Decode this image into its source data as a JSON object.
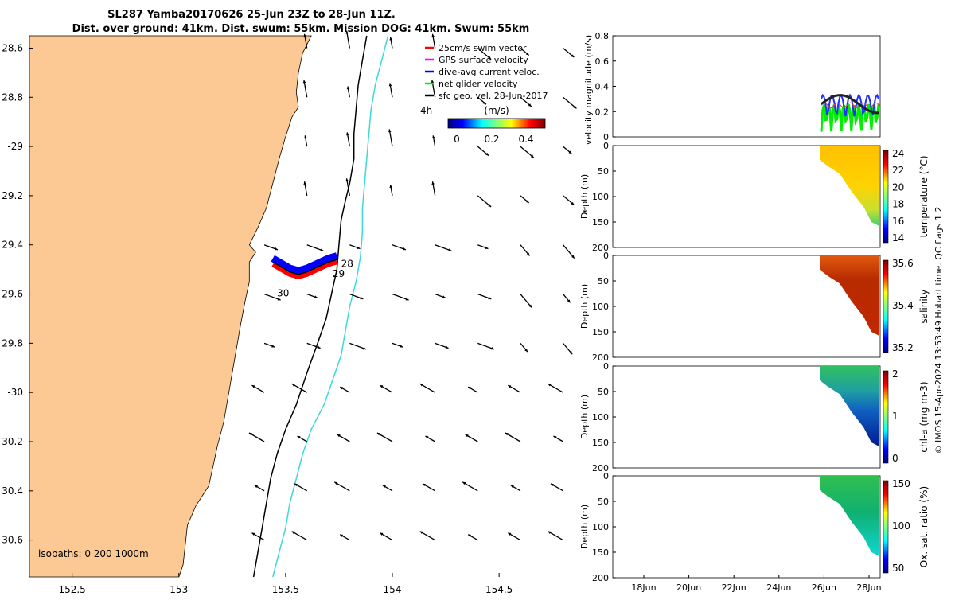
{
  "title_line1": "SL287 Yamba20170626 25-Jun 23Z to 28-Jun 11Z.",
  "title_line2": "Dist. over ground: 41km. Dist. swum: 55km. Mission DOG: 41km. Swum: 55km",
  "colors": {
    "land": "#fcc994",
    "shelf_200": "#000000",
    "isobath_1000": "#3ed8d8",
    "swim": "#ff0000",
    "gps": "#ff00ff",
    "dive": "#0000ff",
    "net": "#00ee00",
    "sfc": "#000000"
  },
  "chart_data": [
    {
      "type": "map",
      "xlabel": "",
      "ylabel": "",
      "xlim": [
        152.3,
        154.85
      ],
      "ylim": [
        -30.75,
        -28.55
      ],
      "x_ticks": [
        152.5,
        153,
        153.5,
        154,
        154.5
      ],
      "x_tick_labels": [
        "152.5",
        "153",
        "153.5",
        "154",
        "154.5"
      ],
      "y_ticks": [
        -28.6,
        -28.8,
        -29,
        -29.2,
        -29.4,
        -29.6,
        -29.8,
        -30,
        -30.2,
        -30.4,
        -30.6
      ],
      "y_tick_labels": [
        "28.6",
        "28.8",
        "-29",
        "29.2",
        "29.4",
        "29.6",
        "29.8",
        "-30",
        "30.2",
        "30.4",
        "30.6"
      ],
      "legend": {
        "placement": "top-right",
        "entries": [
          {
            "label": "25cm/s swim vector",
            "color": "#ff0000"
          },
          {
            "label": "GPS surface velocity",
            "color": "#ff00ff"
          },
          {
            "label": "dive-avg current veloc.",
            "color": "#0000ff"
          },
          {
            "label": "net glider velocity",
            "color": "#00ee00"
          },
          {
            "label": "sfc geo. vel. 28-Jun-2017",
            "color": "#000000"
          }
        ]
      },
      "colorbar": {
        "label": "(m/s)",
        "ticks": [
          "0",
          "0.2",
          "0.4"
        ],
        "range": [
          -0.05,
          0.5
        ],
        "side_label": "4h"
      },
      "isobath_label": "isobaths: 0   200  1000m",
      "day_labels": [
        {
          "text": "28",
          "lon": 153.76,
          "lat": -29.49
        },
        {
          "text": "29",
          "lon": 153.72,
          "lat": -29.53
        },
        {
          "text": "30",
          "lon": 153.46,
          "lat": -29.61
        }
      ],
      "glider_track": [
        [
          153.44,
          -29.47
        ],
        [
          153.48,
          -29.49
        ],
        [
          153.52,
          -29.51
        ],
        [
          153.56,
          -29.52
        ],
        [
          153.6,
          -29.51
        ],
        [
          153.65,
          -29.49
        ],
        [
          153.7,
          -29.47
        ],
        [
          153.74,
          -29.46
        ]
      ],
      "coastline": [
        [
          153.62,
          -28.55
        ],
        [
          153.58,
          -28.62
        ],
        [
          153.56,
          -28.7
        ],
        [
          153.55,
          -28.78
        ],
        [
          153.56,
          -28.84
        ],
        [
          153.53,
          -28.88
        ],
        [
          153.5,
          -28.96
        ],
        [
          153.47,
          -29.05
        ],
        [
          153.44,
          -29.15
        ],
        [
          153.41,
          -29.25
        ],
        [
          153.37,
          -29.33
        ],
        [
          153.33,
          -29.4
        ],
        [
          153.36,
          -29.43
        ],
        [
          153.33,
          -29.47
        ],
        [
          153.33,
          -29.55
        ],
        [
          153.31,
          -29.63
        ],
        [
          153.29,
          -29.72
        ],
        [
          153.27,
          -29.82
        ],
        [
          153.25,
          -29.92
        ],
        [
          153.23,
          -30.02
        ],
        [
          153.21,
          -30.12
        ],
        [
          153.18,
          -30.22
        ],
        [
          153.16,
          -30.3
        ],
        [
          153.14,
          -30.38
        ],
        [
          153.08,
          -30.46
        ],
        [
          153.04,
          -30.54
        ],
        [
          153.03,
          -30.62
        ],
        [
          153.02,
          -30.7
        ],
        [
          153.0,
          -30.75
        ]
      ],
      "isobath_200": [
        [
          153.88,
          -28.55
        ],
        [
          153.86,
          -28.65
        ],
        [
          153.84,
          -28.75
        ],
        [
          153.83,
          -28.85
        ],
        [
          153.82,
          -28.95
        ],
        [
          153.82,
          -29.05
        ],
        [
          153.8,
          -29.15
        ],
        [
          153.78,
          -29.22
        ],
        [
          153.76,
          -29.3
        ],
        [
          153.75,
          -29.4
        ],
        [
          153.74,
          -29.5
        ],
        [
          153.72,
          -29.58
        ],
        [
          153.69,
          -29.7
        ],
        [
          153.65,
          -29.8
        ],
        [
          153.6,
          -29.92
        ],
        [
          153.55,
          -30.05
        ],
        [
          153.5,
          -30.15
        ],
        [
          153.46,
          -30.25
        ],
        [
          153.43,
          -30.35
        ],
        [
          153.41,
          -30.45
        ],
        [
          153.39,
          -30.55
        ],
        [
          153.37,
          -30.65
        ],
        [
          153.35,
          -30.75
        ]
      ],
      "isobath_1000": [
        [
          153.98,
          -28.55
        ],
        [
          153.95,
          -28.65
        ],
        [
          153.92,
          -28.75
        ],
        [
          153.9,
          -28.85
        ],
        [
          153.89,
          -28.95
        ],
        [
          153.88,
          -29.05
        ],
        [
          153.87,
          -29.15
        ],
        [
          153.86,
          -29.25
        ],
        [
          153.86,
          -29.35
        ],
        [
          153.85,
          -29.45
        ],
        [
          153.83,
          -29.55
        ],
        [
          153.8,
          -29.65
        ],
        [
          153.78,
          -29.75
        ],
        [
          153.76,
          -29.85
        ],
        [
          153.72,
          -29.95
        ],
        [
          153.68,
          -30.05
        ],
        [
          153.62,
          -30.15
        ],
        [
          153.58,
          -30.25
        ],
        [
          153.55,
          -30.35
        ],
        [
          153.52,
          -30.45
        ],
        [
          153.5,
          -30.55
        ],
        [
          153.47,
          -30.65
        ],
        [
          153.44,
          -30.75
        ]
      ],
      "vector_grid": {
        "lons": [
          153.4,
          153.6,
          153.8,
          154.0,
          154.2,
          154.4,
          154.6,
          154.8
        ],
        "lats": [
          -28.6,
          -28.8,
          -29.0,
          -29.2,
          -29.4,
          -29.6,
          -29.8,
          -30.0,
          -30.2,
          -30.4,
          -30.6
        ]
      }
    },
    {
      "type": "line",
      "ylabel": "velocity magnitude (m/s)",
      "ylim": [
        0,
        0.8
      ],
      "y_ticks": [
        "0",
        "0.2",
        "0.4",
        "0.6",
        "0.8"
      ],
      "xlim": [
        0,
        1
      ]
    },
    {
      "type": "heatmap",
      "ylabel": "Depth (m)",
      "cbar_label": "temperature (°C)",
      "y_ticks": [
        "0",
        "50",
        "100",
        "150",
        "200"
      ],
      "cbar_ticks": [
        "24",
        "22",
        "20",
        "18",
        "16",
        "14"
      ]
    },
    {
      "type": "heatmap",
      "ylabel": "Depth (m)",
      "cbar_label": "salinity",
      "y_ticks": [
        "0",
        "50",
        "100",
        "150",
        "200"
      ],
      "cbar_ticks": [
        "35.6",
        "35.4",
        "35.2"
      ]
    },
    {
      "type": "heatmap",
      "ylabel": "Depth (m)",
      "cbar_label": "chl-a (mg m-3)",
      "y_ticks": [
        "0",
        "50",
        "100",
        "150",
        "200"
      ],
      "cbar_ticks": [
        "2",
        "1",
        "0"
      ]
    },
    {
      "type": "heatmap",
      "ylabel": "Depth (m)",
      "cbar_label": "Ox. sat. ratio (%)",
      "y_ticks": [
        "0",
        "50",
        "100",
        "150",
        "200"
      ],
      "cbar_ticks": [
        "150",
        "100",
        "50"
      ],
      "x_tick_labels": [
        "18Jun",
        "20Jun",
        "22Jun",
        "24Jun",
        "26Jun",
        "28Jun"
      ]
    }
  ],
  "right_side_note": "© IMOS 15-Apr-2024 13:53:49 Hobart time. QC flags 1  2"
}
